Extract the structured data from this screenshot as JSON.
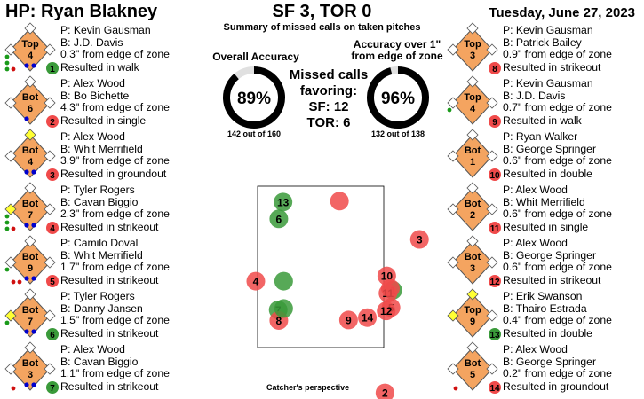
{
  "header": {
    "umpire": "HP: Ryan Blakney",
    "score": "SF 3, TOR 0",
    "date": "Tuesday, June 27, 2023",
    "subtitle": "Summary of missed calls on taken pitches"
  },
  "summary": {
    "overall_label": "Overall Accuracy",
    "overall_pct": "89%",
    "overall_value": 0.89,
    "overall_count": "142 out of 160",
    "over1_label_line1": "Accuracy over 1\"",
    "over1_label_line2": "from edge of zone",
    "over1_pct": "96%",
    "over1_value": 0.96,
    "over1_count": "132 out of 138",
    "missed_line1": "Missed calls",
    "missed_line2": "favoring:",
    "missed_sf": "SF: 12",
    "missed_tor": "TOR: 6"
  },
  "colors": {
    "favor_sf": "#f04a4a",
    "favor_tor": "#3a9a3a",
    "diamond": "#f4a460",
    "ball": "#1a9a1a",
    "out": "#d01010",
    "runner": "#0000cc",
    "base_on": "#ffff33"
  },
  "calls": [
    {
      "num": "1",
      "inning": "Top",
      "inn_no": "4",
      "pitcher": "P: Kevin Gausman",
      "batter": "B: J.D. Davis",
      "dist": "0.3\" from edge of zone",
      "result": "Resulted in walk",
      "favor": "tor",
      "balls": 3,
      "strikes": 2,
      "outs": 1,
      "bases": [
        false,
        false,
        false
      ]
    },
    {
      "num": "2",
      "inning": "Bot",
      "inn_no": "6",
      "pitcher": "P: Alex Wood",
      "batter": "B: Bo Bichette",
      "dist": "4.3\" from edge of zone",
      "result": "Resulted in single",
      "favor": "sf",
      "balls": 0,
      "strikes": 1,
      "outs": 0,
      "bases": [
        false,
        false,
        false
      ]
    },
    {
      "num": "3",
      "inning": "Bot",
      "inn_no": "4",
      "pitcher": "P: Alex Wood",
      "batter": "B: Whit Merrifield",
      "dist": "3.9\" from edge of zone",
      "result": "Resulted in groundout",
      "favor": "sf",
      "balls": 0,
      "strikes": 2,
      "outs": 0,
      "bases": [
        false,
        true,
        false
      ]
    },
    {
      "num": "4",
      "inning": "Bot",
      "inn_no": "7",
      "pitcher": "P: Tyler Rogers",
      "batter": "B: Cavan Biggio",
      "dist": "2.3\" from edge of zone",
      "result": "Resulted in strikeout",
      "favor": "sf",
      "balls": 3,
      "strikes": 2,
      "outs": 1,
      "bases": [
        false,
        false,
        true
      ]
    },
    {
      "num": "5",
      "inning": "Bot",
      "inn_no": "9",
      "pitcher": "P: Camilo Doval",
      "batter": "B: Whit Merrifield",
      "dist": "1.7\" from edge of zone",
      "result": "Resulted in strikeout",
      "favor": "sf",
      "balls": 1,
      "strikes": 2,
      "outs": 2,
      "bases": [
        false,
        false,
        false
      ]
    },
    {
      "num": "6",
      "inning": "Bot",
      "inn_no": "7",
      "pitcher": "P: Tyler Rogers",
      "batter": "B: Danny Jansen",
      "dist": "1.5\" from edge of zone",
      "result": "Resulted in strikeout",
      "favor": "tor",
      "balls": 1,
      "strikes": 2,
      "outs": 0,
      "bases": [
        false,
        false,
        true
      ]
    },
    {
      "num": "7",
      "inning": "Bot",
      "inn_no": "3",
      "pitcher": "P: Alex Wood",
      "batter": "B: Cavan Biggio",
      "dist": "1.1\" from edge of zone",
      "result": "Resulted in strikeout",
      "favor": "tor",
      "balls": 0,
      "strikes": 2,
      "outs": 1,
      "bases": [
        false,
        false,
        false
      ]
    },
    {
      "num": "8",
      "inning": "Top",
      "inn_no": "3",
      "pitcher": "P: Kevin Gausman",
      "batter": "B: Patrick Bailey",
      "dist": "0.9\" from edge of zone",
      "result": "Resulted in strikeout",
      "favor": "sf",
      "balls": 0,
      "strikes": 0,
      "outs": 0,
      "bases": [
        false,
        false,
        false
      ]
    },
    {
      "num": "9",
      "inning": "Top",
      "inn_no": "4",
      "pitcher": "P: Kevin Gausman",
      "batter": "B: J.D. Davis",
      "dist": "0.7\" from edge of zone",
      "result": "Resulted in walk",
      "favor": "sf",
      "balls": 1,
      "strikes": 0,
      "outs": 0,
      "bases": [
        false,
        false,
        false
      ]
    },
    {
      "num": "10",
      "inning": "Bot",
      "inn_no": "1",
      "pitcher": "P: Ryan Walker",
      "batter": "B: George Springer",
      "dist": "0.6\" from edge of zone",
      "result": "Resulted in double",
      "favor": "sf",
      "balls": 0,
      "strikes": 0,
      "outs": 0,
      "bases": [
        false,
        false,
        false
      ]
    },
    {
      "num": "11",
      "inning": "Bot",
      "inn_no": "2",
      "pitcher": "P: Alex Wood",
      "batter": "B: Whit Merrifield",
      "dist": "0.6\" from edge of zone",
      "result": "Resulted in single",
      "favor": "sf",
      "balls": 0,
      "strikes": 0,
      "outs": 0,
      "bases": [
        false,
        false,
        false
      ]
    },
    {
      "num": "12",
      "inning": "Bot",
      "inn_no": "3",
      "pitcher": "P: Alex Wood",
      "batter": "B: George Springer",
      "dist": "0.6\" from edge of zone",
      "result": "Resulted in strikeout",
      "favor": "sf",
      "balls": 0,
      "strikes": 0,
      "outs": 0,
      "bases": [
        false,
        false,
        false
      ]
    },
    {
      "num": "13",
      "inning": "Top",
      "inn_no": "9",
      "pitcher": "P: Erik Swanson",
      "batter": "B: Thairo Estrada",
      "dist": "0.4\" from edge of zone",
      "result": "Resulted in double",
      "favor": "tor",
      "balls": 0,
      "strikes": 0,
      "outs": 0,
      "bases": [
        false,
        true,
        true
      ]
    },
    {
      "num": "14",
      "inning": "Bot",
      "inn_no": "5",
      "pitcher": "P: Alex Wood",
      "batter": "B: George Springer",
      "dist": "0.2\" from edge of zone",
      "result": "Resulted in groundout",
      "favor": "sf",
      "balls": 0,
      "strikes": 0,
      "outs": 1,
      "bases": [
        false,
        false,
        false
      ]
    }
  ],
  "zone": {
    "caption": "Catcher's perspective",
    "xlim": [
      -2.0,
      2.0
    ],
    "ylim": [
      -0.5,
      4.4
    ],
    "sz_left": -0.83,
    "sz_right": 0.83,
    "sz_bot": 1.45,
    "sz_top": 3.6,
    "pitches": [
      {
        "num": "1",
        "x": 1.08,
        "y": 1.86
      },
      {
        "num": "2",
        "x": 0.95,
        "y": -0.28
      },
      {
        "num": "3",
        "x": 1.52,
        "y": 2.92
      },
      {
        "num": "4",
        "x": -1.18,
        "y": 2.05
      },
      {
        "num": "5",
        "x": 1.05,
        "y": 1.5
      },
      {
        "num": "6",
        "x": -0.8,
        "y": 3.35
      },
      {
        "num": "7",
        "x": -0.81,
        "y": 1.45
      },
      {
        "num": "8",
        "x": -0.8,
        "y": 1.23
      },
      {
        "num": "9",
        "x": 0.35,
        "y": 1.24
      },
      {
        "num": "10",
        "x": 0.98,
        "y": 2.16
      },
      {
        "num": "11",
        "x": 1.0,
        "y": 1.8
      },
      {
        "num": "12",
        "x": 0.97,
        "y": 1.43
      },
      {
        "num": "13",
        "x": -0.73,
        "y": 3.7
      },
      {
        "num": "14",
        "x": 0.66,
        "y": 1.29
      },
      {
        "num": "",
        "x": 0.2,
        "y": 3.72
      },
      {
        "num": "",
        "x": -0.72,
        "y": 1.48
      },
      {
        "num": "",
        "x": -0.72,
        "y": 2.05
      },
      {
        "num": "",
        "x": 1.04,
        "y": 1.9
      }
    ]
  }
}
